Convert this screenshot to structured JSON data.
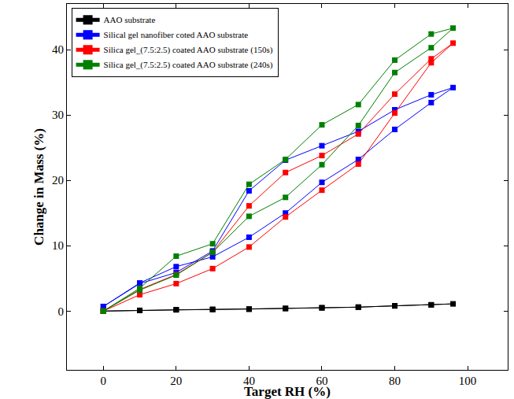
{
  "chart_data": {
    "type": "line",
    "x_label": "Target RH (%)",
    "y_label": "Change in Mass (%)",
    "xlim": [
      -10,
      111
    ],
    "ylim": [
      -9,
      47
    ],
    "xticks": [
      0,
      20,
      40,
      60,
      80,
      100
    ],
    "yticks": [
      0,
      10,
      20,
      30,
      40
    ],
    "grid": false,
    "legend": "upper left",
    "marker": "square",
    "line_style": "solid",
    "series": [
      {
        "name": "AAO substrate",
        "color": "#000000",
        "x": [
          0,
          10,
          20,
          30,
          40,
          50,
          60,
          70,
          80,
          90,
          96,
          90,
          80,
          70,
          60,
          50,
          40,
          30,
          20,
          10,
          0
        ],
        "values": [
          0,
          0.1,
          0.2,
          0.25,
          0.3,
          0.4,
          0.5,
          0.6,
          0.8,
          0.95,
          1.1,
          0.95,
          0.8,
          0.6,
          0.5,
          0.4,
          0.3,
          0.25,
          0.2,
          0.1,
          0
        ]
      },
      {
        "name": "Silical gel nanofiber coted AAO substrate",
        "color": "#0000ff",
        "x": [
          0,
          10,
          20,
          30,
          40,
          50,
          60,
          70,
          80,
          90,
          96,
          90,
          80,
          70,
          60,
          50,
          40,
          30,
          20,
          10,
          0
        ],
        "values": [
          0.7,
          4.3,
          6.8,
          8.3,
          11.3,
          15.0,
          19.7,
          23.2,
          27.8,
          31.9,
          34.2,
          33.1,
          30.8,
          27.5,
          25.3,
          23.1,
          18.4,
          9.2,
          5.9,
          4.2,
          0.7
        ]
      },
      {
        "name": "Silica gel_(7.5:2.5) coated AAO substrate (150s)",
        "color": "#ff0000",
        "x": [
          0,
          10,
          20,
          30,
          40,
          50,
          60,
          70,
          80,
          90,
          96,
          90,
          80,
          70,
          60,
          50,
          40,
          30,
          20,
          10,
          0
        ],
        "values": [
          0,
          2.5,
          4.2,
          6.5,
          9.8,
          14.4,
          18.5,
          22.5,
          30.3,
          38.0,
          41.0,
          38.6,
          33.2,
          27.1,
          23.8,
          21.2,
          16.1,
          9.0,
          5.6,
          3.3,
          0
        ]
      },
      {
        "name": "Silica gel_(7.5:2.5) coated AAO substrate (240s)",
        "color": "#008000",
        "x": [
          0,
          10,
          20,
          30,
          40,
          50,
          60,
          70,
          80,
          90,
          96,
          90,
          80,
          70,
          60,
          50,
          40,
          30,
          20,
          10,
          0
        ],
        "values": [
          0,
          3.2,
          5.5,
          9.0,
          14.5,
          17.4,
          22.4,
          28.4,
          36.5,
          40.3,
          43.3,
          42.4,
          38.4,
          31.6,
          28.5,
          23.2,
          19.4,
          10.3,
          8.4,
          3.5,
          0
        ]
      }
    ]
  }
}
